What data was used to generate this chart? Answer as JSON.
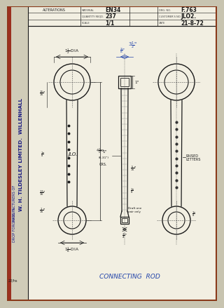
{
  "bg_color": "#c8c4b0",
  "paper_color": "#f0ede0",
  "line_color": "#1a1a1a",
  "blue_color": "#2244aa",
  "dark_line": "#2a2a2a",
  "title_text": "CONNECTING  ROD",
  "material": "EN34",
  "drg_no": "F.763",
  "qty": "237",
  "cust_no": "JLO2.",
  "scale": "1/1",
  "date": "21-8-72",
  "sidebar_main": "W. H. TILDESLEY LIMITED.  WILLENHALL",
  "sidebar_sub": "MANUFACTURERS OF",
  "sidebar_sub2": "DROP FORGINGS  &",
  "alterations": "ALTERATIONS",
  "stamp": "22/hs"
}
